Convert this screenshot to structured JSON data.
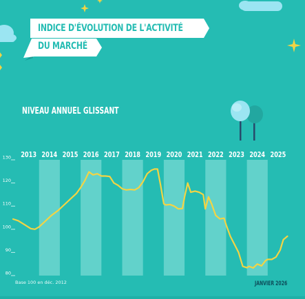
{
  "title": {
    "line1": "INDICE D'ÉVOLUTION DE L'ACTIVITÉ",
    "line2": "DU MARCHÉ"
  },
  "subtitle": "NIVEAU ANNUEL GLISSANT",
  "footnote": "Base 100 en déc. 2012",
  "date_label": "JANVIER 2026",
  "colors": {
    "background": "#25bcb3",
    "band": "#6dd6cf",
    "line": "#f3d444",
    "banner": "#ffffff",
    "tree_light": "#9be5f2",
    "tree_dark": "#22a7a0",
    "trunk": "#274a6b"
  },
  "icons": [
    "sparkle-icon",
    "cloud-icon",
    "tree-icon"
  ],
  "chart_data": {
    "type": "line",
    "title": "",
    "xlabel": "",
    "ylabel": "",
    "categories": [
      "2013",
      "2014",
      "2015",
      "2016",
      "2017",
      "2018",
      "2019",
      "2020",
      "2021",
      "2022",
      "2023",
      "2024",
      "2025"
    ],
    "yticks": [
      80,
      90,
      100,
      110,
      120,
      130
    ],
    "ylim": [
      80,
      130
    ],
    "xlim": [
      2012.75,
      2026.0
    ],
    "grid": false,
    "series": [
      {
        "x": [
          2012.75,
          2013.0,
          2013.3,
          2013.6,
          2013.8,
          2014.0,
          2014.3,
          2014.6,
          2014.9,
          2015.2,
          2015.5,
          2015.8,
          2016.0,
          2016.2,
          2016.4,
          2016.6,
          2016.8,
          2017.0,
          2017.2,
          2017.4,
          2017.6,
          2017.8,
          2018.0,
          2018.2,
          2018.4,
          2018.6,
          2018.8,
          2019.0,
          2019.2,
          2019.4,
          2019.55,
          2019.7,
          2019.85,
          2020.0,
          2020.1,
          2020.3,
          2020.5,
          2020.7,
          2020.9,
          2021.0,
          2021.15,
          2021.3,
          2021.5,
          2021.7,
          2021.9,
          2022.0,
          2022.15,
          2022.3,
          2022.5,
          2022.7,
          2022.9,
          2023.0,
          2023.2,
          2023.4,
          2023.6,
          2023.8,
          2024.0,
          2024.1,
          2024.3,
          2024.5,
          2024.7,
          2024.9,
          2025.0,
          2025.2,
          2025.4,
          2025.6,
          2025.75,
          2025.95
        ],
        "values": [
          104.4,
          103.7,
          102.0,
          100.3,
          100.0,
          101.0,
          103.5,
          106.0,
          108.0,
          110.5,
          113.0,
          115.5,
          118.0,
          121.0,
          124.8,
          123.5,
          124.0,
          123.0,
          123.0,
          122.8,
          120.0,
          119.0,
          117.5,
          117.0,
          117.2,
          117.0,
          118.0,
          120.5,
          124.0,
          125.5,
          126.0,
          126.0,
          119.0,
          111.0,
          110.5,
          110.7,
          110.0,
          108.8,
          109.0,
          114.0,
          120.0,
          116.0,
          116.5,
          116.0,
          115.0,
          108.8,
          114.0,
          111.0,
          106.0,
          104.5,
          104.8,
          102.0,
          97.0,
          93.5,
          90.0,
          84.0,
          83.4,
          84.0,
          83.3,
          85.0,
          84.2,
          86.5,
          87.0,
          87.0,
          88.0,
          91.0,
          95.5,
          97.0
        ]
      }
    ]
  }
}
